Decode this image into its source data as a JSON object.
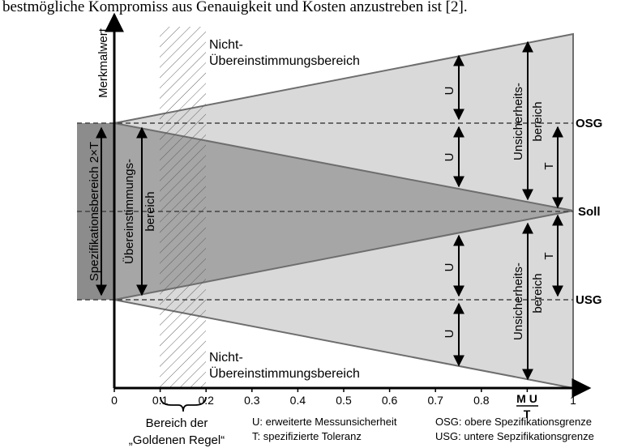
{
  "header_text": "bestmögliche Kompromiss aus Genauigkeit und Kosten anzustreben ist [2].",
  "axis": {
    "y_label": "Merkmalwert",
    "x_ticks": [
      "0",
      "0.1",
      "0.2",
      "0.3",
      "0.4",
      "0.5",
      "0.6",
      "0.7",
      "0.8",
      "0.9",
      "1"
    ],
    "x_special_label_top": "M U",
    "x_special_label_bottom": "T"
  },
  "limits": {
    "osg": "OSG",
    "soll": "Soll",
    "usg": "USG"
  },
  "regions": {
    "nonconformity_top_line1": "Nicht-",
    "nonconformity_top_line2": "Übereinstimmungsbereich",
    "nonconformity_bottom_line1": "Nicht-",
    "nonconformity_bottom_line2": "Übereinstimmungsbereich",
    "specification_range": "Spezifikationsbereich 2×T",
    "conformity_line1": "Übereinstimmungs-",
    "conformity_line2": "bereich",
    "uncertainty_top_line1": "Unsicherheits-",
    "uncertainty_top_line2": "bereich",
    "uncertainty_bottom_line1": "Unsicherheits-",
    "uncertainty_bottom_line2": "bereich"
  },
  "arrows": {
    "u": "U",
    "t": "T"
  },
  "golden_rule": {
    "line1": "Bereich der",
    "line2": "„Goldenen Regel“"
  },
  "legend": {
    "u_def": "U: erweiterte Messunsicherheit",
    "t_def": "T:  spezifizierte Toleranz",
    "osg_def": "OSG: obere Spezifikationsgrenze",
    "usg_def": "USG: untere Sepzifikationsgrenze"
  },
  "colors": {
    "light_region": "#d9d9d9",
    "conformity_region": "#a6a6a6",
    "spec_band": "#8c8c8c",
    "outline": "#6e6e6e",
    "axis": "#000000"
  }
}
